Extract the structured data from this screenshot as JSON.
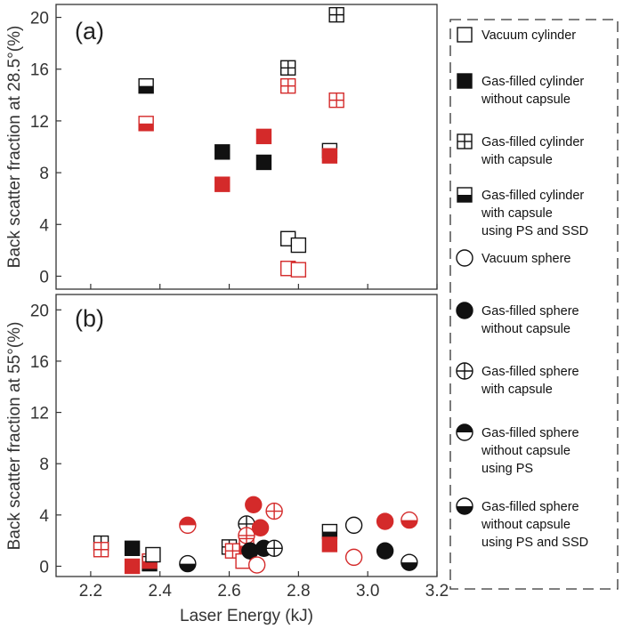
{
  "chart_data": {
    "type": "scatter",
    "xlabel": "Laser Energy (kJ)",
    "xlim": [
      2.1,
      3.2
    ],
    "x_ticks": [
      "2.2",
      "2.4",
      "2.6",
      "2.8",
      "3.0",
      "3.2"
    ],
    "y_ticks": [
      "0",
      "4",
      "8",
      "12",
      "16",
      "20"
    ],
    "colors": {
      "black": "#111111",
      "red": "#d42a2a"
    },
    "panels": [
      {
        "label": "(a)",
        "ylabel": "Back scatter fraction at 28.5°(%)",
        "ylim": [
          -1,
          21
        ],
        "points": [
          {
            "series": "gas-cyl-capsule-ps-ssd",
            "color": "black",
            "x": 2.36,
            "y": 14.7
          },
          {
            "series": "gas-cyl-capsule-ps-ssd",
            "color": "red",
            "x": 2.36,
            "y": 11.8
          },
          {
            "series": "gas-cyl-no-capsule",
            "color": "black",
            "x": 2.58,
            "y": 9.6
          },
          {
            "series": "gas-cyl-no-capsule",
            "color": "red",
            "x": 2.58,
            "y": 7.1
          },
          {
            "series": "gas-cyl-no-capsule",
            "color": "black",
            "x": 2.7,
            "y": 8.8
          },
          {
            "series": "gas-cyl-no-capsule",
            "color": "red",
            "x": 2.7,
            "y": 10.8
          },
          {
            "series": "gas-cyl-capsule",
            "color": "black",
            "x": 2.77,
            "y": 16.1
          },
          {
            "series": "gas-cyl-capsule",
            "color": "red",
            "x": 2.77,
            "y": 14.7
          },
          {
            "series": "vacuum-cyl",
            "color": "black",
            "x": 2.77,
            "y": 2.9
          },
          {
            "series": "vacuum-cyl",
            "color": "black",
            "x": 2.8,
            "y": 2.4
          },
          {
            "series": "vacuum-cyl",
            "color": "red",
            "x": 2.77,
            "y": 0.6
          },
          {
            "series": "vacuum-cyl",
            "color": "red",
            "x": 2.8,
            "y": 0.5
          },
          {
            "series": "gas-cyl-capsule-ps-ssd",
            "color": "black",
            "x": 2.89,
            "y": 9.7
          },
          {
            "series": "gas-cyl-no-capsule",
            "color": "red",
            "x": 2.89,
            "y": 9.3
          },
          {
            "series": "gas-cyl-capsule",
            "color": "black",
            "x": 2.91,
            "y": 20.2
          },
          {
            "series": "gas-cyl-capsule",
            "color": "red",
            "x": 2.91,
            "y": 13.6
          }
        ]
      },
      {
        "label": "(b)",
        "ylabel": "Back scatter fraction at 55°(%)",
        "ylim": [
          -0.8,
          21.2
        ],
        "points": [
          {
            "series": "gas-cyl-capsule",
            "color": "black",
            "x": 2.23,
            "y": 1.8
          },
          {
            "series": "gas-cyl-capsule",
            "color": "red",
            "x": 2.23,
            "y": 1.3
          },
          {
            "series": "gas-cyl-no-capsule",
            "color": "black",
            "x": 2.32,
            "y": 1.4
          },
          {
            "series": "gas-cyl-no-capsule",
            "color": "red",
            "x": 2.32,
            "y": 0.0
          },
          {
            "series": "gas-cyl-capsule-ps-ssd",
            "color": "black",
            "x": 2.37,
            "y": 0.2
          },
          {
            "series": "gas-cyl-capsule-ps-ssd",
            "color": "red",
            "x": 2.37,
            "y": 0.4
          },
          {
            "series": "vacuum-cyl",
            "color": "black",
            "x": 2.38,
            "y": 0.9
          },
          {
            "series": "gas-sph-capsule-ps-ssd",
            "color": "black",
            "x": 2.48,
            "y": 0.2
          },
          {
            "series": "gas-sph-no-capsule-ps",
            "color": "red",
            "x": 2.48,
            "y": 3.2
          },
          {
            "series": "gas-cyl-capsule",
            "color": "black",
            "x": 2.6,
            "y": 1.5
          },
          {
            "series": "gas-cyl-capsule",
            "color": "red",
            "x": 2.61,
            "y": 1.2
          },
          {
            "series": "vacuum-cyl",
            "color": "red",
            "x": 2.64,
            "y": 0.4
          },
          {
            "series": "gas-sph-capsule",
            "color": "black",
            "x": 2.65,
            "y": 3.3
          },
          {
            "series": "gas-sph-capsule",
            "color": "red",
            "x": 2.65,
            "y": 2.4
          },
          {
            "series": "gas-cyl-capsule-ps-ssd",
            "color": "red",
            "x": 2.65,
            "y": 1.6
          },
          {
            "series": "gas-sph-no-capsule",
            "color": "black",
            "x": 2.66,
            "y": 1.2
          },
          {
            "series": "gas-sph-no-capsule",
            "color": "red",
            "x": 2.67,
            "y": 4.8
          },
          {
            "series": "vacuum-sphere",
            "color": "red",
            "x": 2.68,
            "y": 0.1
          },
          {
            "series": "gas-sph-no-capsule",
            "color": "red",
            "x": 2.69,
            "y": 3.0
          },
          {
            "series": "gas-sph-no-capsule",
            "color": "black",
            "x": 2.7,
            "y": 1.4
          },
          {
            "series": "gas-sph-capsule",
            "color": "black",
            "x": 2.73,
            "y": 1.4
          },
          {
            "series": "gas-sph-capsule",
            "color": "red",
            "x": 2.73,
            "y": 4.3
          },
          {
            "series": "gas-cyl-capsule-ps-ssd",
            "color": "black",
            "x": 2.89,
            "y": 2.7
          },
          {
            "series": "gas-cyl-no-capsule",
            "color": "red",
            "x": 2.89,
            "y": 1.7
          },
          {
            "series": "vacuum-sphere",
            "color": "black",
            "x": 2.96,
            "y": 3.2
          },
          {
            "series": "vacuum-sphere",
            "color": "red",
            "x": 2.96,
            "y": 0.7
          },
          {
            "series": "gas-sph-no-capsule",
            "color": "red",
            "x": 3.05,
            "y": 3.5
          },
          {
            "series": "gas-sph-no-capsule",
            "color": "black",
            "x": 3.05,
            "y": 1.2
          },
          {
            "series": "gas-sph-capsule-ps-ssd",
            "color": "red",
            "x": 3.12,
            "y": 3.6
          },
          {
            "series": "gas-sph-capsule-ps-ssd",
            "color": "black",
            "x": 3.12,
            "y": 0.3
          }
        ]
      }
    ],
    "legend": [
      {
        "marker": "vacuum-cyl",
        "lines": [
          "Vacuum cylinder"
        ]
      },
      {
        "marker": "gas-cyl-no-capsule",
        "lines": [
          "Gas-filled cylinder",
          "without capsule"
        ]
      },
      {
        "marker": "gas-cyl-capsule",
        "lines": [
          "Gas-filled cylinder",
          " with capsule"
        ]
      },
      {
        "marker": "gas-cyl-capsule-ps-ssd",
        "lines": [
          "Gas-filled cylinder",
          " with capsule",
          "using PS and SSD"
        ]
      },
      {
        "marker": "vacuum-sphere",
        "lines": [
          "Vacuum sphere"
        ]
      },
      {
        "marker": "gas-sph-no-capsule",
        "lines": [
          "Gas-filled sphere",
          "without capsule"
        ]
      },
      {
        "marker": "gas-sph-capsule",
        "lines": [
          "Gas-filled sphere",
          "with capsule"
        ]
      },
      {
        "marker": "gas-sph-no-capsule-ps",
        "lines": [
          "Gas-filled sphere",
          "without capsule",
          "using PS"
        ]
      },
      {
        "marker": "gas-sph-capsule-ps-ssd",
        "lines": [
          "Gas-filled sphere",
          "without capsule",
          "using PS and SSD"
        ]
      }
    ]
  }
}
